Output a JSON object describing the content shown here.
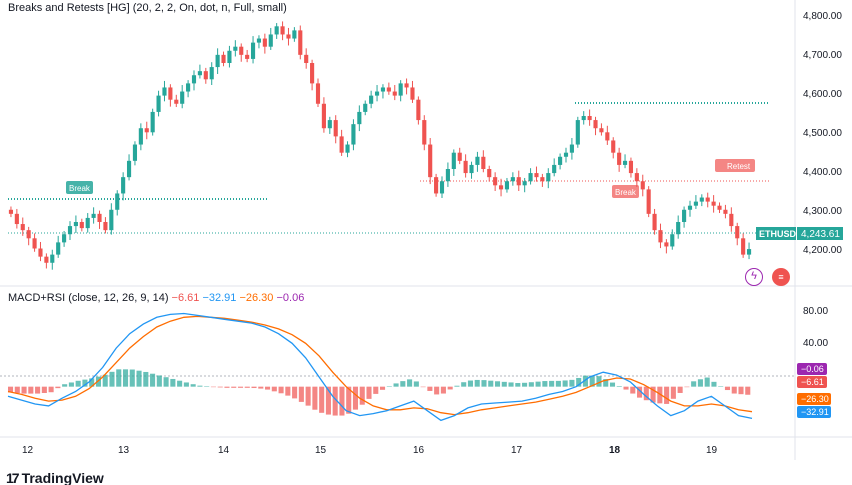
{
  "header": {
    "title": "Breaks and Retests [HG] (20, 2, 2, On, dot, n, Full, small)"
  },
  "macd_header": {
    "title": "MACD+RSI (close, 12, 26, 9, 14)",
    "v1": "−6.61",
    "v2": "−32.91",
    "v3": "−26.30",
    "v4": "−0.06"
  },
  "price_axis": {
    "labels": [
      "4,800.00",
      "4,700.00",
      "4,600.00",
      "4,500.00",
      "4,400.00",
      "4,300.00",
      "4,200.00"
    ],
    "current_symbol": "ETHUSD",
    "current_price": "4,243.61"
  },
  "macd_axis": {
    "labels": [
      "80.00",
      "40.00"
    ],
    "badges": [
      "−0.06",
      "−6.61",
      "−26.30",
      "−32.91"
    ]
  },
  "time_axis": {
    "labels": [
      "12",
      "13",
      "14",
      "15",
      "16",
      "17",
      "18",
      "19"
    ]
  },
  "annotations": {
    "break1": "Break",
    "break2": "Break",
    "retest": "Retest"
  },
  "brand": {
    "name": "TradingView"
  },
  "colors": {
    "up": "#26a69a",
    "down": "#ef5350",
    "macd_line": "#2196f3",
    "signal_line": "#ff6d00",
    "level": "#26a69a",
    "level_red": "#ef5350"
  },
  "chart_data": {
    "type": "candlestick",
    "symbol": "ETHUSD",
    "ylim": [
      4180,
      4830
    ],
    "closes": [
      4330,
      4305,
      4290,
      4270,
      4245,
      4225,
      4210,
      4230,
      4260,
      4280,
      4300,
      4310,
      4295,
      4320,
      4330,
      4310,
      4290,
      4340,
      4380,
      4420,
      4460,
      4500,
      4540,
      4530,
      4580,
      4620,
      4640,
      4610,
      4600,
      4630,
      4650,
      4670,
      4680,
      4660,
      4690,
      4720,
      4700,
      4730,
      4740,
      4720,
      4710,
      4750,
      4760,
      4740,
      4770,
      4790,
      4770,
      4760,
      4780,
      4720,
      4700,
      4650,
      4600,
      4540,
      4560,
      4520,
      4480,
      4500,
      4550,
      4580,
      4600,
      4620,
      4630,
      4640,
      4630,
      4620,
      4650,
      4640,
      4610,
      4560,
      4500,
      4420,
      4380,
      4410,
      4440,
      4480,
      4460,
      4430,
      4450,
      4470,
      4440,
      4420,
      4400,
      4390,
      4410,
      4420,
      4400,
      4410,
      4430,
      4420,
      4410,
      4430,
      4450,
      4470,
      4480,
      4500,
      4560,
      4570,
      4560,
      4540,
      4530,
      4510,
      4480,
      4450,
      4460,
      4430,
      4410,
      4390,
      4330,
      4290,
      4260,
      4250,
      4280,
      4310,
      4340,
      4350,
      4360,
      4370,
      4360,
      4350,
      4340,
      4330,
      4300,
      4270,
      4230,
      4243.61
    ],
    "macd_line": [
      -10,
      -14,
      -18,
      -20,
      -12,
      -5,
      5,
      20,
      40,
      55,
      65,
      72,
      75,
      76,
      74,
      72,
      70,
      68,
      66,
      62,
      55,
      45,
      30,
      10,
      -10,
      -25,
      -30,
      -28,
      -25,
      -20,
      -15,
      -25,
      -35,
      -30,
      -22,
      -18,
      -17,
      -16,
      -15,
      -12,
      -8,
      -5,
      0,
      10,
      15,
      12,
      5,
      -8,
      -20,
      -30,
      -25,
      -15,
      -10,
      -20,
      -30,
      -33
    ],
    "signal_line": [
      -5,
      -8,
      -12,
      -15,
      -14,
      -10,
      -2,
      10,
      25,
      40,
      52,
      62,
      68,
      72,
      73,
      72,
      71,
      69,
      67,
      64,
      60,
      54,
      45,
      32,
      15,
      0,
      -12,
      -20,
      -24,
      -24,
      -22,
      -23,
      -27,
      -29,
      -27,
      -24,
      -22,
      -20,
      -18,
      -16,
      -13,
      -10,
      -6,
      0,
      6,
      9,
      8,
      2,
      -6,
      -15,
      -20,
      -20,
      -18,
      -20,
      -24,
      -26
    ]
  }
}
